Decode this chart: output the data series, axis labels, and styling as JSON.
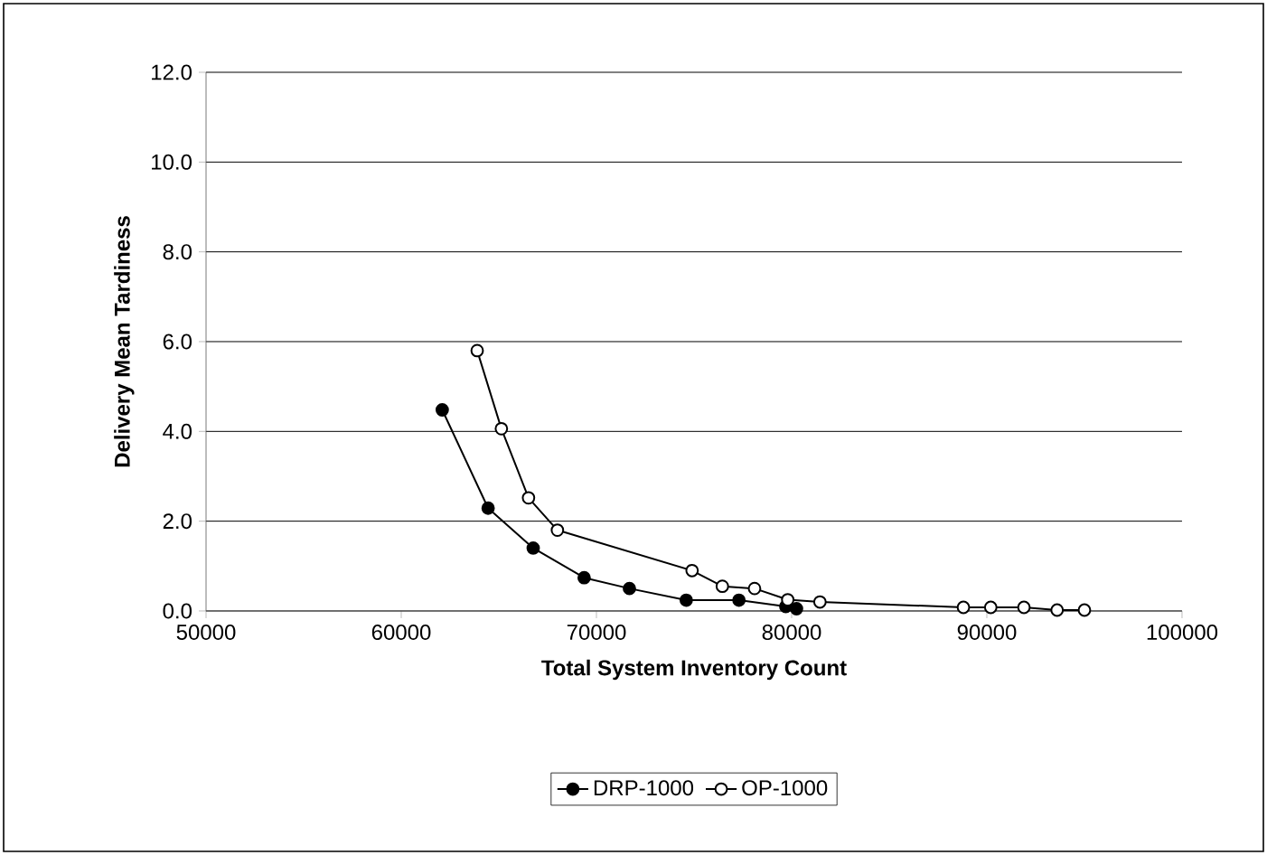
{
  "chart_data": {
    "type": "line",
    "xlabel": "Total System Inventory Count",
    "ylabel": "Delivery Mean Tardiness",
    "xlim": [
      50000,
      100000
    ],
    "xticks": [
      50000,
      60000,
      70000,
      80000,
      90000,
      100000
    ],
    "ylim": [
      0,
      12
    ],
    "yticks": [
      {
        "value": 0,
        "label": "0.0"
      },
      {
        "value": 2,
        "label": "2.0"
      },
      {
        "value": 4,
        "label": "4.0"
      },
      {
        "value": 6,
        "label": "6.0"
      },
      {
        "value": 8,
        "label": "8.0"
      },
      {
        "value": 10,
        "label": "10.0"
      },
      {
        "value": 12,
        "label": "12.0"
      }
    ],
    "grid": "y",
    "legend": "bottom",
    "series": [
      {
        "name": "DRP-1000",
        "color": "#000000",
        "marker": "circle",
        "x": [
          62100,
          64450,
          66760,
          69370,
          71690,
          74600,
          77300,
          79700,
          80250
        ],
        "values": [
          4.48,
          2.29,
          1.4,
          0.74,
          0.5,
          0.24,
          0.24,
          0.1,
          0.05
        ]
      },
      {
        "name": "OP-1000",
        "color": "#ffffff",
        "marker": "circle",
        "x": [
          63890,
          65130,
          66520,
          68000,
          74900,
          76450,
          78100,
          79800,
          81450,
          88800,
          90200,
          91900,
          93600,
          95000
        ],
        "values": [
          5.8,
          4.06,
          2.52,
          1.8,
          0.9,
          0.55,
          0.5,
          0.25,
          0.2,
          0.08,
          0.08,
          0.08,
          0.02,
          0.02
        ]
      }
    ]
  }
}
